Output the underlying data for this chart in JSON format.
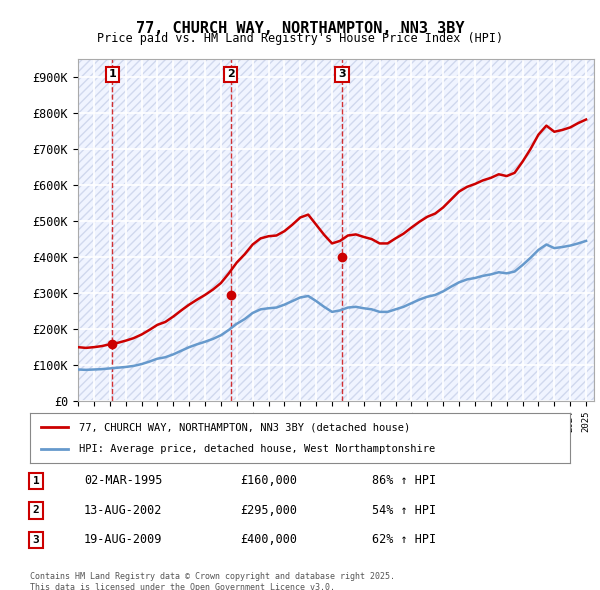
{
  "title": "77, CHURCH WAY, NORTHAMPTON, NN3 3BY",
  "subtitle": "Price paid vs. HM Land Registry's House Price Index (HPI)",
  "ylabel": "",
  "ylim": [
    0,
    950000
  ],
  "yticks": [
    0,
    100000,
    200000,
    300000,
    400000,
    500000,
    600000,
    700000,
    800000,
    900000
  ],
  "ytick_labels": [
    "£0",
    "£100K",
    "£200K",
    "£300K",
    "£400K",
    "£500K",
    "£600K",
    "£700K",
    "£800K",
    "£900K"
  ],
  "bg_color": "#ffffff",
  "plot_bg_color": "#f0f4ff",
  "grid_color": "#ffffff",
  "hpi_color": "#6699cc",
  "price_color": "#cc0000",
  "sale_marker_color": "#cc0000",
  "sale_label_bg": "#ffffff",
  "sale_label_border": "#cc0000",
  "purchases": [
    {
      "date_num": 1995.17,
      "price": 160000,
      "label": "1"
    },
    {
      "date_num": 2002.62,
      "price": 295000,
      "label": "2"
    },
    {
      "date_num": 2009.63,
      "price": 400000,
      "label": "3"
    }
  ],
  "legend_line1": "77, CHURCH WAY, NORTHAMPTON, NN3 3BY (detached house)",
  "legend_line2": "HPI: Average price, detached house, West Northamptonshire",
  "table_rows": [
    {
      "num": "1",
      "date": "02-MAR-1995",
      "price": "£160,000",
      "hpi": "86% ↑ HPI"
    },
    {
      "num": "2",
      "date": "13-AUG-2002",
      "price": "£295,000",
      "hpi": "54% ↑ HPI"
    },
    {
      "num": "3",
      "date": "19-AUG-2009",
      "price": "£400,000",
      "hpi": "62% ↑ HPI"
    }
  ],
  "footer": "Contains HM Land Registry data © Crown copyright and database right 2025.\nThis data is licensed under the Open Government Licence v3.0.",
  "hpi_data": {
    "years": [
      1993,
      1993.5,
      1994,
      1994.5,
      1995,
      1995.5,
      1996,
      1996.5,
      1997,
      1997.5,
      1998,
      1998.5,
      1999,
      1999.5,
      2000,
      2000.5,
      2001,
      2001.5,
      2002,
      2002.5,
      2003,
      2003.5,
      2004,
      2004.5,
      2005,
      2005.5,
      2006,
      2006.5,
      2007,
      2007.5,
      2008,
      2008.5,
      2009,
      2009.5,
      2010,
      2010.5,
      2011,
      2011.5,
      2012,
      2012.5,
      2013,
      2013.5,
      2014,
      2014.5,
      2015,
      2015.5,
      2016,
      2016.5,
      2017,
      2017.5,
      2018,
      2018.5,
      2019,
      2019.5,
      2020,
      2020.5,
      2021,
      2021.5,
      2022,
      2022.5,
      2023,
      2023.5,
      2024,
      2024.5,
      2025
    ],
    "values": [
      88000,
      87000,
      88000,
      89000,
      91000,
      93000,
      95000,
      98000,
      103000,
      110000,
      118000,
      122000,
      130000,
      140000,
      150000,
      158000,
      165000,
      173000,
      183000,
      198000,
      215000,
      228000,
      245000,
      255000,
      258000,
      260000,
      268000,
      278000,
      288000,
      292000,
      278000,
      262000,
      248000,
      252000,
      260000,
      262000,
      258000,
      255000,
      248000,
      248000,
      255000,
      262000,
      272000,
      282000,
      290000,
      295000,
      305000,
      318000,
      330000,
      338000,
      342000,
      348000,
      352000,
      358000,
      355000,
      360000,
      378000,
      398000,
      420000,
      435000,
      425000,
      428000,
      432000,
      438000,
      445000
    ]
  },
  "price_data": {
    "years": [
      1993,
      1993.5,
      1994,
      1994.5,
      1995,
      1995.5,
      1996,
      1996.5,
      1997,
      1997.5,
      1998,
      1998.5,
      1999,
      1999.5,
      2000,
      2000.5,
      2001,
      2001.5,
      2002,
      2002.5,
      2003,
      2003.5,
      2004,
      2004.5,
      2005,
      2005.5,
      2006,
      2006.5,
      2007,
      2007.5,
      2008,
      2008.5,
      2009,
      2009.5,
      2010,
      2010.5,
      2011,
      2011.5,
      2012,
      2012.5,
      2013,
      2013.5,
      2014,
      2014.5,
      2015,
      2015.5,
      2016,
      2016.5,
      2017,
      2017.5,
      2018,
      2018.5,
      2019,
      2019.5,
      2020,
      2020.5,
      2021,
      2021.5,
      2022,
      2022.5,
      2023,
      2023.5,
      2024,
      2024.5,
      2025
    ],
    "values": [
      150000,
      148000,
      150000,
      153000,
      158000,
      162000,
      168000,
      175000,
      185000,
      198000,
      212000,
      220000,
      235000,
      252000,
      268000,
      282000,
      295000,
      310000,
      328000,
      355000,
      385000,
      408000,
      435000,
      452000,
      458000,
      460000,
      472000,
      490000,
      510000,
      518000,
      490000,
      462000,
      438000,
      445000,
      460000,
      463000,
      456000,
      450000,
      438000,
      438000,
      452000,
      465000,
      482000,
      498000,
      512000,
      521000,
      538000,
      560000,
      582000,
      595000,
      603000,
      613000,
      620000,
      630000,
      625000,
      634000,
      665000,
      700000,
      740000,
      765000,
      748000,
      753000,
      760000,
      772000,
      782000
    ]
  }
}
